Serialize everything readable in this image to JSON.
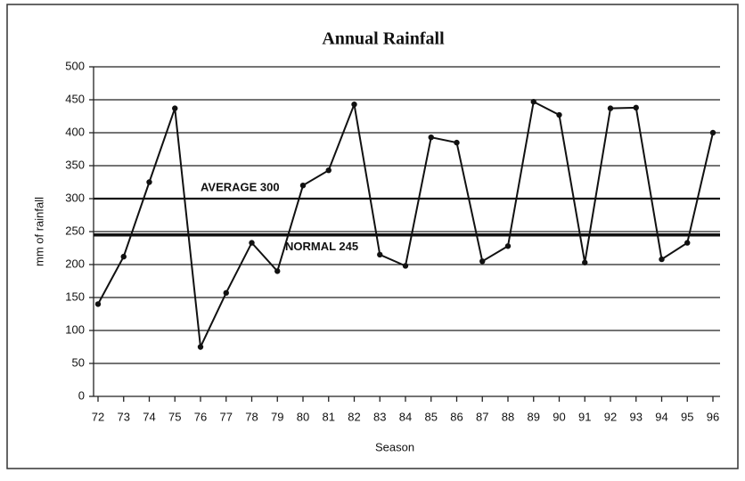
{
  "chart_data": {
    "type": "line",
    "title": "Annual Rainfall",
    "x_label": "Season",
    "y_label": "mm of rainfall",
    "categories": [
      "72",
      "73",
      "74",
      "75",
      "76",
      "77",
      "78",
      "79",
      "80",
      "81",
      "82",
      "83",
      "84",
      "85",
      "86",
      "87",
      "88",
      "89",
      "90",
      "91",
      "92",
      "93",
      "94",
      "95",
      "96"
    ],
    "values": [
      140,
      212,
      325,
      437,
      75,
      157,
      233,
      190,
      320,
      343,
      443,
      215,
      198,
      393,
      385,
      205,
      228,
      447,
      427,
      203,
      437,
      438,
      208,
      233,
      400
    ],
    "color": "#111111",
    "ylim": [
      0,
      500
    ],
    "yticks": [
      0,
      50,
      100,
      150,
      200,
      250,
      300,
      350,
      400,
      450,
      500
    ],
    "grid": true,
    "reference_lines": [
      {
        "label": "AVERAGE 300",
        "value": 300
      },
      {
        "label": "NORMAL 245",
        "value": 245
      }
    ]
  }
}
